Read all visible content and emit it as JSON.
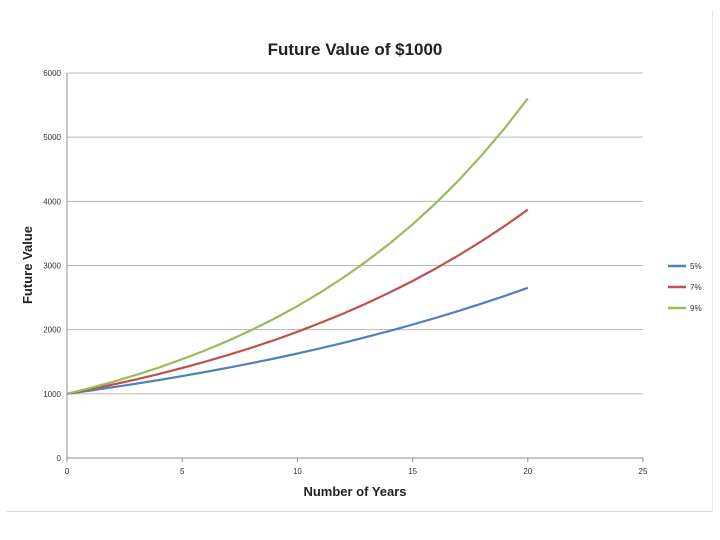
{
  "chart_data": {
    "type": "line",
    "title": "Future Value of $1000",
    "xlabel": "Number of Years",
    "ylabel": "Future Value",
    "xlim": [
      0,
      25
    ],
    "ylim": [
      0,
      6000
    ],
    "xticks": [
      0,
      5,
      10,
      15,
      20,
      25
    ],
    "yticks": [
      0,
      1000,
      2000,
      3000,
      4000,
      5000,
      6000
    ],
    "grid": "horizontal",
    "legend_position": "right",
    "x": [
      0,
      1,
      2,
      3,
      4,
      5,
      6,
      7,
      8,
      9,
      10,
      11,
      12,
      13,
      14,
      15,
      16,
      17,
      18,
      19,
      20
    ],
    "series": [
      {
        "name": "5%",
        "color": "#4f81bd",
        "values": [
          1000,
          1050,
          1103,
          1158,
          1216,
          1276,
          1340,
          1407,
          1477,
          1551,
          1629,
          1710,
          1796,
          1886,
          1980,
          2079,
          2183,
          2292,
          2407,
          2527,
          2653
        ]
      },
      {
        "name": "7%",
        "color": "#c0504d",
        "values": [
          1000,
          1070,
          1145,
          1225,
          1311,
          1403,
          1501,
          1606,
          1718,
          1838,
          1967,
          2105,
          2252,
          2410,
          2579,
          2759,
          2952,
          3159,
          3380,
          3617,
          3870
        ]
      },
      {
        "name": "9%",
        "color": "#9bbb59",
        "values": [
          1000,
          1090,
          1188,
          1295,
          1412,
          1539,
          1677,
          1828,
          1993,
          2172,
          2367,
          2580,
          2813,
          3066,
          3342,
          3642,
          3970,
          4328,
          4717,
          5142,
          5604
        ]
      }
    ]
  }
}
